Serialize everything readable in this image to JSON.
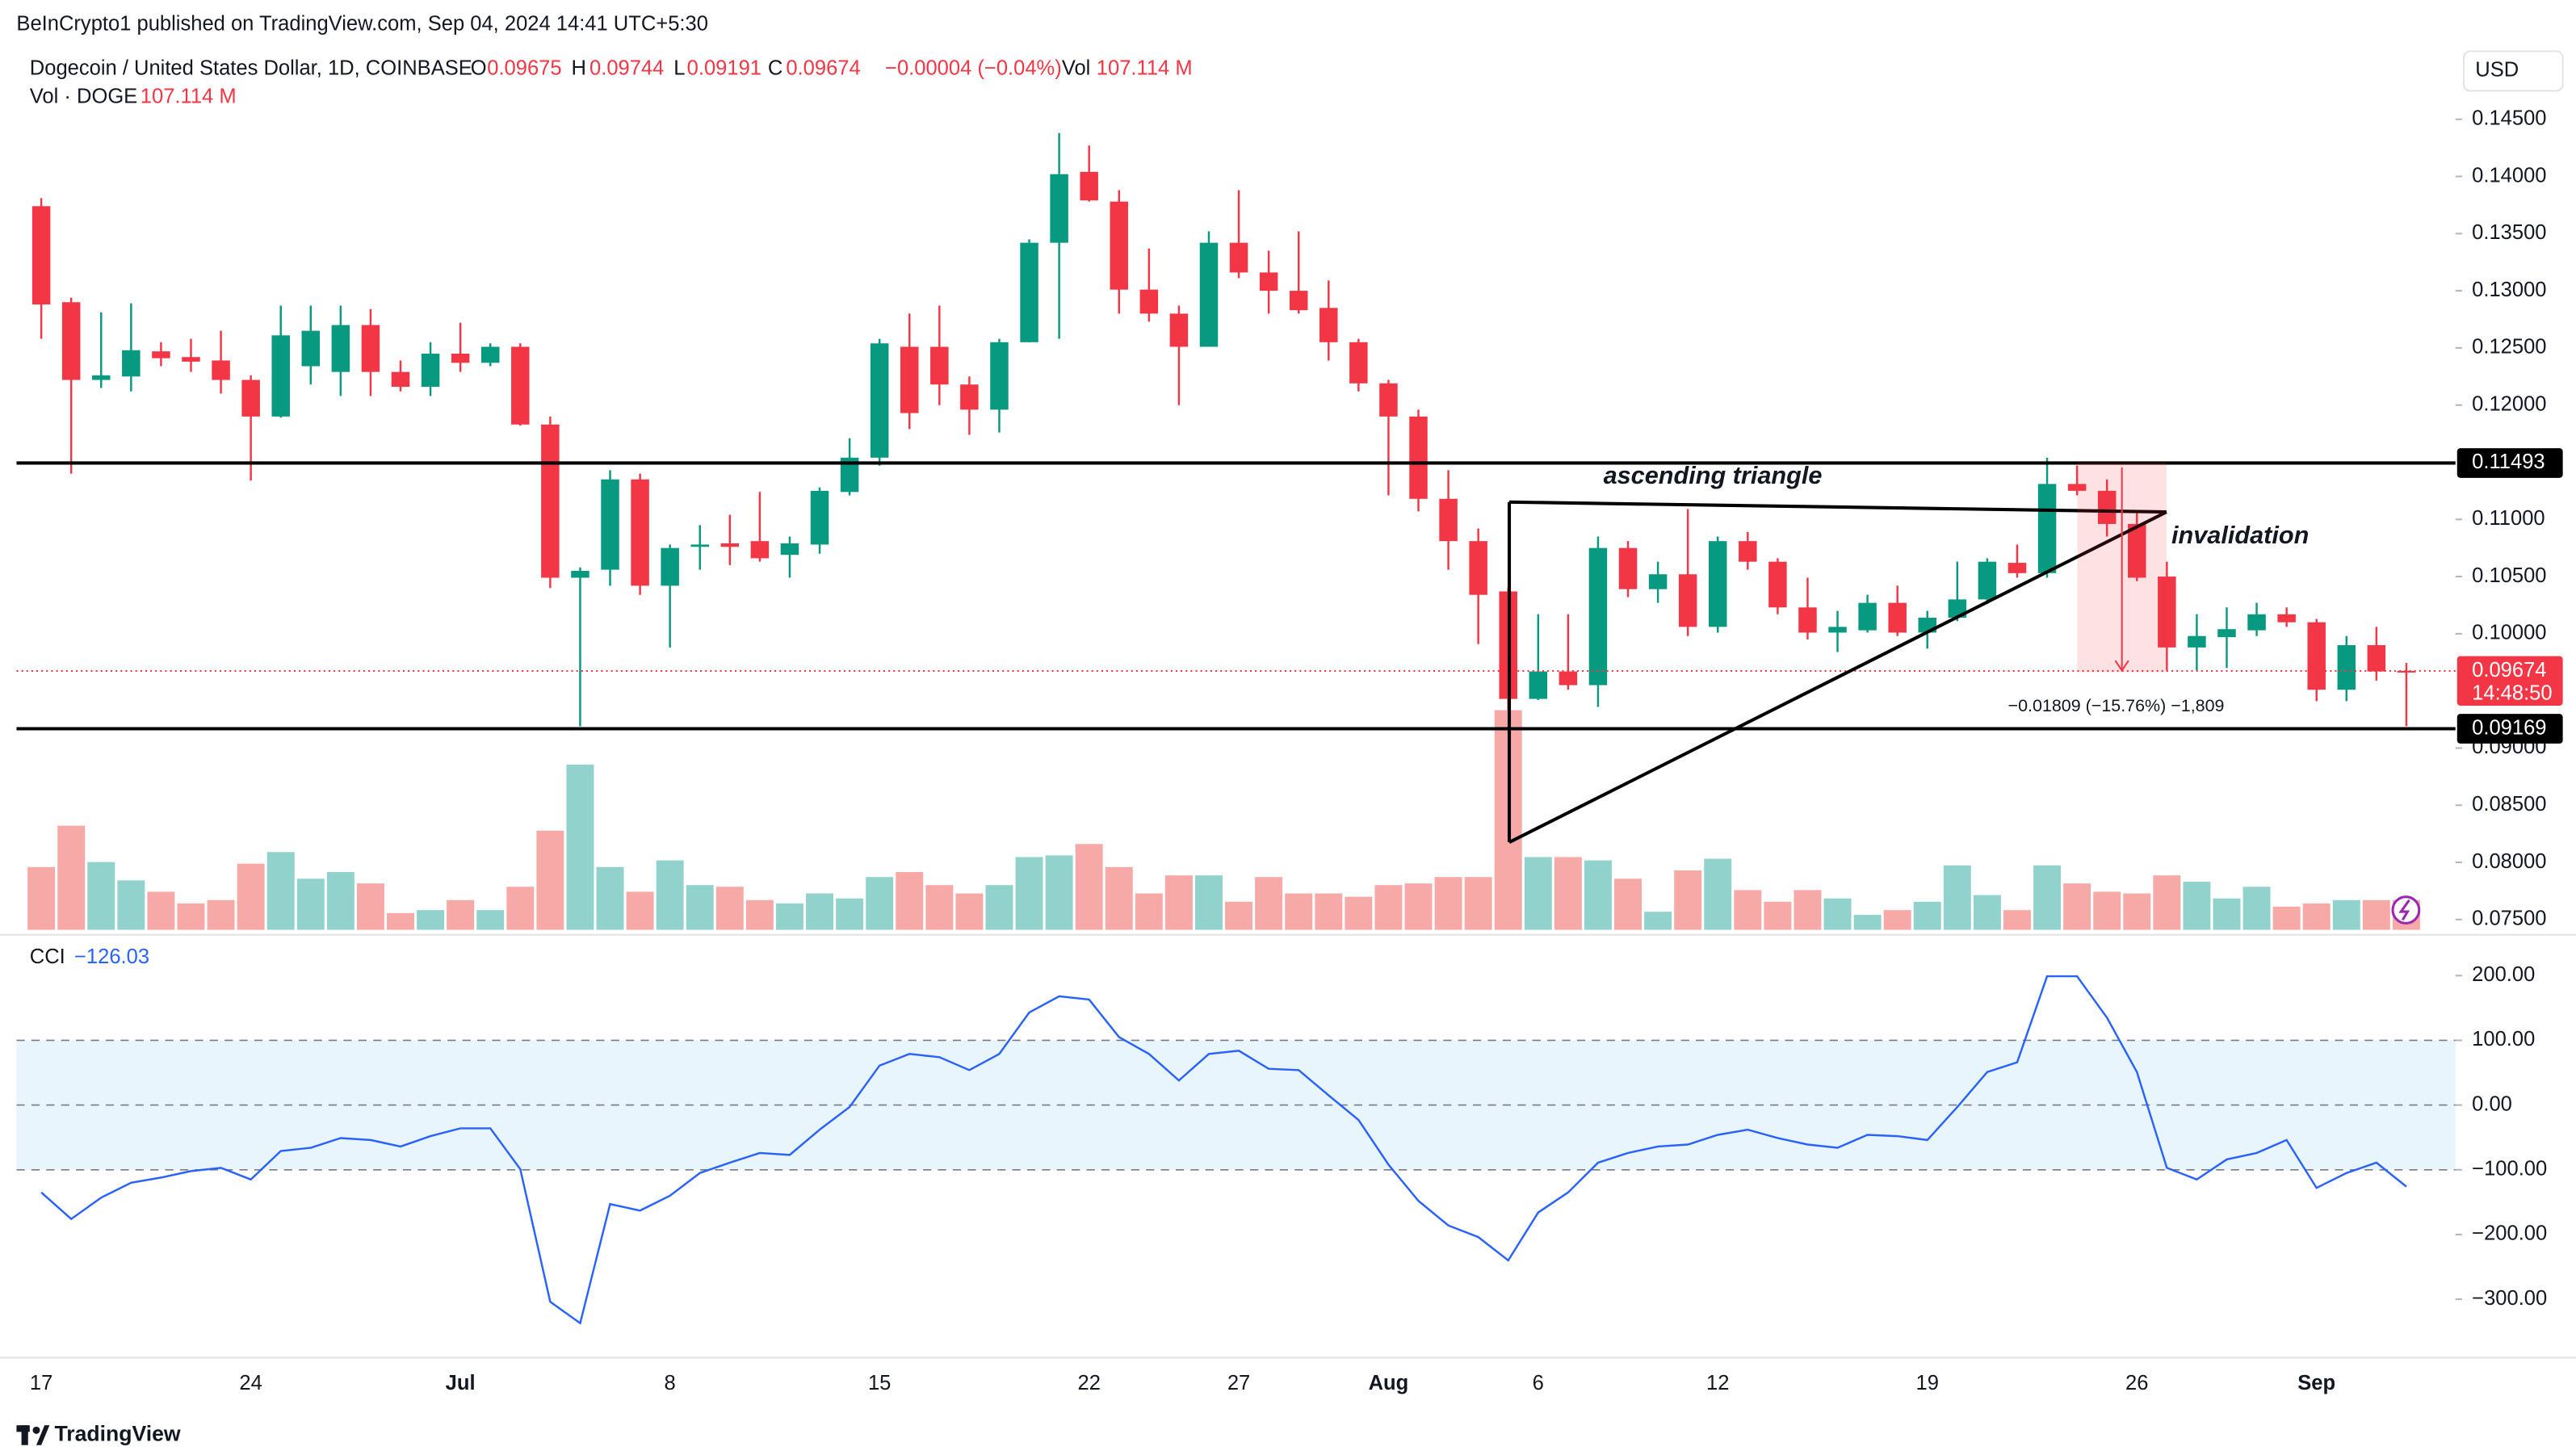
{
  "header": {
    "publisher": "BeInCrypto1 published on TradingView.com, Sep 04, 2024 14:41 UTC+5:30",
    "symbol": "Dogecoin / United States Dollar, 1D, COINBASE",
    "open_key": "O",
    "open": "0.09675",
    "high_key": "H",
    "high": "0.09744",
    "low_key": "L",
    "low": "0.09191",
    "close_key": "C",
    "close": "0.09674",
    "change": "−0.00004 (−0.04%)",
    "vol_key": "Vol",
    "vol": "107.114 M",
    "volume_name": "Vol · DOGE",
    "volume_value": "107.114 M",
    "cci_name": "CCI",
    "cci_value": "−126.03",
    "currency": "USD",
    "brand": "TradingView"
  },
  "chart_data": [
    {
      "type": "candlestick",
      "categories": [
        "17",
        null,
        null,
        null,
        null,
        null,
        null,
        "24",
        null,
        null,
        null,
        null,
        null,
        null,
        "Jul",
        null,
        null,
        null,
        null,
        null,
        null,
        "8",
        null,
        null,
        null,
        null,
        null,
        null,
        "15",
        null,
        null,
        null,
        null,
        null,
        null,
        "22",
        null,
        null,
        null,
        null,
        "27",
        null,
        null,
        null,
        null,
        "Aug",
        null,
        null,
        null,
        null,
        "6",
        null,
        null,
        null,
        null,
        null,
        "12",
        null,
        null,
        null,
        null,
        null,
        null,
        "19",
        null,
        null,
        null,
        null,
        null,
        null,
        "26",
        null,
        null,
        null,
        null,
        null,
        "Sep",
        null,
        null,
        null
      ],
      "open": [
        0.1374,
        0.129,
        0.1222,
        0.1225,
        0.1247,
        0.1242,
        0.1239,
        0.1222,
        0.119,
        0.1234,
        0.1229,
        0.127,
        0.1229,
        0.1216,
        0.1245,
        0.1237,
        0.1251,
        0.1183,
        0.1049,
        0.1056,
        0.1135,
        0.1042,
        0.1076,
        0.1079,
        0.1081,
        0.1069,
        0.1078,
        0.1124,
        0.1154,
        0.1251,
        0.1251,
        0.1218,
        0.1196,
        0.1255,
        0.1342,
        0.1404,
        0.1378,
        0.1301,
        0.128,
        0.1251,
        0.1342,
        0.1316,
        0.13,
        0.1285,
        0.1255,
        0.1219,
        0.119,
        0.1118,
        0.1081,
        0.1037,
        0.0943,
        0.0967,
        0.0955,
        0.1075,
        0.1039,
        0.1052,
        0.1006,
        0.1081,
        0.1063,
        0.1023,
        0.1001,
        0.1003,
        0.1027,
        0.1001,
        0.1014,
        0.103,
        0.1062,
        0.1053,
        0.1131,
        0.1125,
        0.1096,
        0.105,
        0.0988,
        0.0997,
        0.1003,
        0.1017,
        0.101,
        0.0951,
        0.099,
        0.09675
      ],
      "high": [
        0.1381,
        0.1294,
        0.1281,
        0.1289,
        0.1255,
        0.1258,
        0.1265,
        0.1226,
        0.1287,
        0.1287,
        0.1287,
        0.1284,
        0.1239,
        0.1255,
        0.1272,
        0.1254,
        0.1254,
        0.119,
        0.1058,
        0.1143,
        0.114,
        0.1078,
        0.1095,
        0.1104,
        0.1124,
        0.1085,
        0.1128,
        0.1171,
        0.1258,
        0.128,
        0.1287,
        0.1225,
        0.1258,
        0.1345,
        0.1438,
        0.1427,
        0.1388,
        0.1337,
        0.1287,
        0.1352,
        0.1388,
        0.1335,
        0.1352,
        0.1309,
        0.1258,
        0.1222,
        0.1196,
        0.1143,
        0.1092,
        0.104,
        0.1017,
        0.1017,
        0.1085,
        0.1081,
        0.1063,
        0.1109,
        0.1085,
        0.1089,
        0.1066,
        0.1049,
        0.102,
        0.1034,
        0.1042,
        0.102,
        0.1063,
        0.1066,
        0.1078,
        0.1154,
        0.1147,
        0.1135,
        0.1107,
        0.1063,
        0.1017,
        0.1023,
        0.1027,
        0.1023,
        0.1013,
        0.0998,
        0.1006,
        0.09744
      ],
      "low": [
        0.1258,
        0.114,
        0.1215,
        0.1212,
        0.1234,
        0.1229,
        0.121,
        0.1134,
        0.1189,
        0.1218,
        0.1208,
        0.1208,
        0.1212,
        0.1208,
        0.1229,
        0.1234,
        0.1182,
        0.104,
        0.0919,
        0.1042,
        0.1034,
        0.0988,
        0.1056,
        0.106,
        0.1063,
        0.1049,
        0.107,
        0.1121,
        0.1147,
        0.1179,
        0.12,
        0.1174,
        0.1176,
        0.1255,
        0.1258,
        0.1378,
        0.128,
        0.1273,
        0.12,
        0.1251,
        0.1311,
        0.128,
        0.128,
        0.1239,
        0.1212,
        0.1121,
        0.1107,
        0.1056,
        0.0991,
        0.0933,
        0.0942,
        0.0951,
        0.0936,
        0.1032,
        0.1027,
        0.0998,
        0.1001,
        0.1056,
        0.1017,
        0.0995,
        0.0984,
        0.1001,
        0.0998,
        0.0987,
        0.1011,
        0.1026,
        0.1049,
        0.1049,
        0.1121,
        0.1085,
        0.1046,
        0.0968,
        0.0968,
        0.097,
        0.0998,
        0.1006,
        0.0941,
        0.0941,
        0.0959,
        0.09191
      ],
      "close": [
        0.1288,
        0.1222,
        0.1226,
        0.1248,
        0.1241,
        0.1238,
        0.1222,
        0.119,
        0.1261,
        0.1265,
        0.127,
        0.1229,
        0.1216,
        0.1245,
        0.1237,
        0.1251,
        0.1183,
        0.1049,
        0.1055,
        0.1135,
        0.1042,
        0.1075,
        0.1078,
        0.1076,
        0.1066,
        0.1079,
        0.1125,
        0.1154,
        0.1254,
        0.1193,
        0.1218,
        0.1196,
        0.1255,
        0.1342,
        0.1402,
        0.1379,
        0.1301,
        0.128,
        0.1251,
        0.1342,
        0.1316,
        0.13,
        0.1283,
        0.1255,
        0.1219,
        0.119,
        0.1118,
        0.1081,
        0.1034,
        0.0943,
        0.0967,
        0.0955,
        0.1075,
        0.1039,
        0.1052,
        0.1006,
        0.1081,
        0.1063,
        0.1023,
        0.1001,
        0.1006,
        0.1027,
        0.1001,
        0.1014,
        0.103,
        0.1063,
        0.1053,
        0.1131,
        0.1125,
        0.1096,
        0.1049,
        0.0988,
        0.0998,
        0.1004,
        0.1017,
        0.101,
        0.0951,
        0.099,
        0.0967,
        0.09674
      ],
      "up_color": "#089981",
      "down_color": "#f23645",
      "ylim": [
        0.0741,
        0.1511
      ],
      "yticks": [
        {
          "value": 0.145,
          "label": "0.14500"
        },
        {
          "value": 0.14,
          "label": "0.14000"
        },
        {
          "value": 0.135,
          "label": "0.13500"
        },
        {
          "value": 0.13,
          "label": "0.13000"
        },
        {
          "value": 0.125,
          "label": "0.12500"
        },
        {
          "value": 0.12,
          "label": "0.12000"
        },
        {
          "value": 0.11,
          "label": "0.11000"
        },
        {
          "value": 0.105,
          "label": "0.10500"
        },
        {
          "value": 0.1,
          "label": "0.10000"
        },
        {
          "value": 0.09,
          "label": "0.09000"
        },
        {
          "value": 0.085,
          "label": "0.08500"
        },
        {
          "value": 0.08,
          "label": "0.08000"
        },
        {
          "value": 0.075,
          "label": "0.07500"
        }
      ],
      "levels": [
        0.11493,
        0.09169
      ],
      "level_color": "#000000",
      "countdown": "14:48:50",
      "annotations": [
        "ascending triangle",
        "invalidation"
      ],
      "measure": "−0.01809 (−15.76%) −1,809"
    },
    {
      "type": "bar",
      "values": [
        226,
        375,
        244,
        178,
        137,
        95,
        107,
        238,
        280,
        184,
        208,
        167,
        60,
        71,
        107,
        71,
        155,
        357,
        595,
        226,
        137,
        250,
        161,
        155,
        107,
        95,
        131,
        113,
        190,
        208,
        161,
        131,
        161,
        262,
        268,
        309,
        226,
        131,
        196,
        196,
        101,
        190,
        131,
        131,
        119,
        161,
        167,
        190,
        190,
        791,
        262,
        262,
        250,
        184,
        65,
        214,
        256,
        143,
        101,
        143,
        113,
        54,
        71,
        101,
        232,
        125,
        71,
        232,
        167,
        137,
        131,
        196,
        173,
        113,
        155,
        83,
        95,
        107,
        107,
        107.114
      ],
      "up_color": "#92d2cc",
      "down_color": "#f7a9a7"
    },
    {
      "type": "line",
      "values": [
        -135,
        -176,
        -143,
        -120,
        -112,
        -102,
        -97,
        -115,
        -71,
        -66,
        -51,
        -54,
        -64,
        -48,
        -36,
        -36,
        -99,
        -304,
        -337,
        -153,
        -163,
        -140,
        -105,
        -89,
        -74,
        -77,
        -38,
        -3,
        61,
        79,
        74,
        54,
        79,
        143,
        168,
        163,
        105,
        79,
        38,
        79,
        84,
        56,
        54,
        15,
        -23,
        -92,
        -148,
        -186,
        -204,
        -240,
        -166,
        -135,
        -89,
        -74,
        -64,
        -61,
        -46,
        -38,
        -51,
        -61,
        -66,
        -46,
        -48,
        -54,
        -3,
        51,
        66,
        199,
        199,
        135,
        51,
        -97,
        -115,
        -84,
        -74,
        -54,
        -128,
        -105,
        -89,
        -126.03
      ],
      "color": "#2962ff",
      "ylim": [
        -385,
        258
      ],
      "yticks": [
        {
          "value": 200,
          "label": "200.00"
        },
        {
          "value": 100,
          "label": "100.00"
        },
        {
          "value": 0,
          "label": "0.00"
        },
        {
          "value": -100,
          "label": "−100.00"
        },
        {
          "value": -200,
          "label": "−200.00"
        },
        {
          "value": -300,
          "label": "−300.00"
        }
      ],
      "band": [
        -100,
        100
      ],
      "band_color": "#e3f2fd"
    }
  ]
}
